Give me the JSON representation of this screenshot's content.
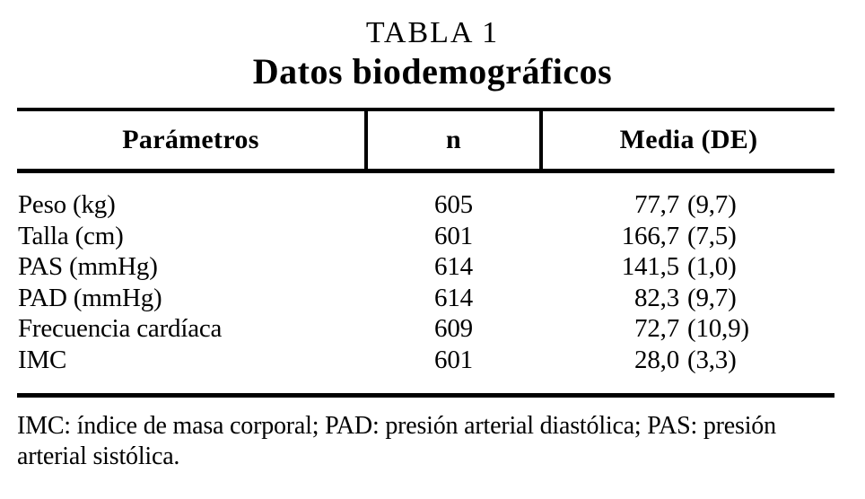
{
  "document": {
    "label": "TABLA 1",
    "title": "Datos biodemográficos"
  },
  "table": {
    "columns": [
      "Parámetros",
      "n",
      "Media (DE)"
    ],
    "rows": [
      {
        "param": "Peso (kg)",
        "n": "605",
        "mean": "77,7",
        "de": "(9,7)"
      },
      {
        "param": "Talla (cm)",
        "n": "601",
        "mean": "166,7",
        "de": "(7,5)"
      },
      {
        "param": "PAS (mmHg)",
        "n": "614",
        "mean": "141,5",
        "de": "(1,0)"
      },
      {
        "param": "PAD (mmHg)",
        "n": "614",
        "mean": "82,3",
        "de": "(9,7)"
      },
      {
        "param": "Frecuencia cardíaca",
        "n": "609",
        "mean": "72,7",
        "de": "(10,9)"
      },
      {
        "param": "IMC",
        "n": "601",
        "mean": "28,0",
        "de": "(3,3)"
      }
    ]
  },
  "footnote": {
    "lines": [
      "IMC: índice de masa corporal; PAD: presión arterial diastólica; PAS: presión",
      "arterial sistólica."
    ],
    "full_text": "IMC: índice de masa corporal; PAD: presión arterial diastólica; PAS: presión arterial sistólica."
  },
  "colors": {
    "text": "#000000",
    "background": "#ffffff",
    "rule": "#000000"
  },
  "chart_data": {
    "type": "table",
    "title": "TABLA 1 — Datos biodemográficos",
    "columns": [
      "Parámetros",
      "n",
      "Media (DE)"
    ],
    "rows": [
      [
        "Peso (kg)",
        605,
        "77,7 (9,7)"
      ],
      [
        "Talla (cm)",
        601,
        "166,7 (7,5)"
      ],
      [
        "PAS (mmHg)",
        614,
        "141,5 (1,0)"
      ],
      [
        "PAD (mmHg)",
        614,
        "82,3 (9,7)"
      ],
      [
        "Frecuencia cardíaca",
        609,
        "72,7 (10,9)"
      ],
      [
        "IMC",
        601,
        "28,0 (3,3)"
      ]
    ]
  }
}
